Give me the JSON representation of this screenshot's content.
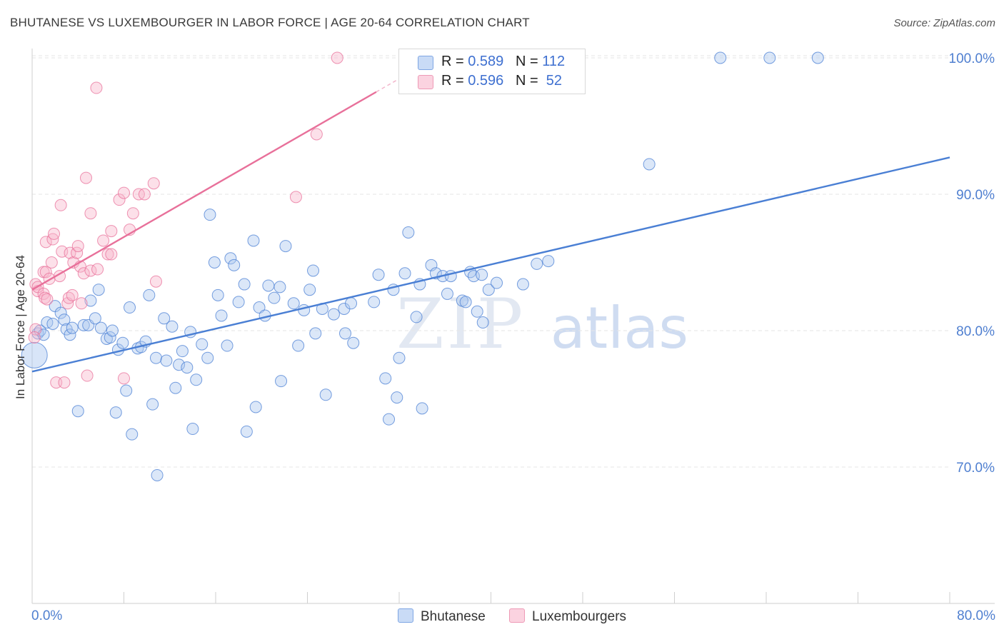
{
  "header": {
    "title": "BHUTANESE VS LUXEMBOURGER IN LABOR FORCE | AGE 20-64 CORRELATION CHART",
    "source": "Source: ZipAtlas.com"
  },
  "watermark": {
    "zip": "ZIP",
    "atlas": "atlas"
  },
  "legend": {
    "rows": [
      {
        "r_label": "R = ",
        "r_value": "0.589",
        "n_label": "N = ",
        "n_value": "112",
        "color": "#a9c6ef"
      },
      {
        "r_label": "R = ",
        "r_value": "0.596",
        "n_label": "N = ",
        "n_value": " 52",
        "color": "#f7b6cb"
      }
    ]
  },
  "bottom_legend": {
    "series_1": "Bhutanese",
    "series_2": "Luxembourgers"
  },
  "chart_data": {
    "type": "scatter",
    "title": "BHUTANESE VS LUXEMBOURGER IN LABOR FORCE | AGE 20-64 CORRELATION CHART",
    "xlabel": "",
    "ylabel": "In Labor Force | Age 20-64",
    "xlim": [
      0,
      80
    ],
    "ylim": [
      61,
      101.5
    ],
    "x_tick_labels": {
      "min": "0.0%",
      "max": "80.0%"
    },
    "y_ticks": [
      {
        "value": 70,
        "label": "70.0%"
      },
      {
        "value": 80,
        "label": "80.0%"
      },
      {
        "value": 90,
        "label": "90.0%"
      },
      {
        "value": 100,
        "label": "100.0%"
      }
    ],
    "grid": "horizontal dashed",
    "legend_position": "top-center",
    "series": [
      {
        "name": "Bhutanese",
        "color": "#4a7fd4",
        "fill": "#a9c6ef",
        "trend": {
          "x0": 0,
          "y0": 77.0,
          "x1": 80,
          "y1": 92.7
        },
        "points": [
          [
            0.2,
            78.2
          ],
          [
            0.5,
            79.8
          ],
          [
            0.7,
            80.0
          ],
          [
            1.0,
            79.7
          ],
          [
            1.3,
            80.6
          ],
          [
            1.8,
            80.5
          ],
          [
            2.0,
            81.8
          ],
          [
            2.5,
            81.3
          ],
          [
            2.8,
            80.8
          ],
          [
            3.0,
            80.1
          ],
          [
            3.3,
            79.7
          ],
          [
            3.5,
            80.2
          ],
          [
            4.0,
            74.1
          ],
          [
            4.5,
            80.4
          ],
          [
            4.9,
            80.4
          ],
          [
            5.1,
            82.2
          ],
          [
            5.5,
            80.9
          ],
          [
            5.8,
            83.0
          ],
          [
            6.0,
            80.2
          ],
          [
            6.5,
            79.4
          ],
          [
            6.8,
            79.5
          ],
          [
            7.0,
            80.0
          ],
          [
            7.3,
            74.0
          ],
          [
            7.5,
            78.6
          ],
          [
            7.9,
            79.1
          ],
          [
            8.2,
            75.6
          ],
          [
            8.5,
            81.7
          ],
          [
            8.7,
            72.4
          ],
          [
            9.2,
            78.7
          ],
          [
            9.5,
            78.8
          ],
          [
            9.9,
            79.2
          ],
          [
            10.2,
            82.6
          ],
          [
            10.5,
            74.6
          ],
          [
            10.9,
            69.4
          ],
          [
            10.8,
            78.0
          ],
          [
            11.5,
            80.9
          ],
          [
            11.7,
            77.8
          ],
          [
            12.2,
            80.3
          ],
          [
            12.5,
            75.8
          ],
          [
            12.8,
            77.5
          ],
          [
            13.1,
            78.5
          ],
          [
            13.5,
            77.3
          ],
          [
            13.8,
            79.9
          ],
          [
            14.0,
            72.8
          ],
          [
            14.3,
            76.4
          ],
          [
            14.8,
            79.0
          ],
          [
            15.3,
            78.0
          ],
          [
            15.5,
            88.5
          ],
          [
            15.9,
            85.0
          ],
          [
            16.2,
            82.6
          ],
          [
            16.5,
            81.1
          ],
          [
            17.0,
            78.9
          ],
          [
            17.3,
            85.3
          ],
          [
            17.6,
            84.8
          ],
          [
            18.0,
            82.1
          ],
          [
            18.5,
            83.4
          ],
          [
            18.7,
            72.6
          ],
          [
            19.3,
            86.6
          ],
          [
            19.5,
            74.4
          ],
          [
            19.8,
            81.7
          ],
          [
            20.3,
            81.1
          ],
          [
            20.6,
            83.3
          ],
          [
            21.1,
            82.4
          ],
          [
            21.6,
            83.2
          ],
          [
            21.7,
            76.3
          ],
          [
            22.1,
            86.2
          ],
          [
            22.8,
            82.0
          ],
          [
            23.2,
            78.9
          ],
          [
            23.7,
            81.5
          ],
          [
            24.2,
            83.0
          ],
          [
            24.5,
            84.4
          ],
          [
            24.7,
            79.8
          ],
          [
            25.3,
            81.6
          ],
          [
            25.6,
            75.3
          ],
          [
            26.3,
            81.2
          ],
          [
            27.2,
            81.6
          ],
          [
            27.3,
            79.8
          ],
          [
            27.8,
            82.0
          ],
          [
            28.0,
            79.1
          ],
          [
            29.8,
            82.1
          ],
          [
            30.2,
            84.1
          ],
          [
            30.8,
            76.5
          ],
          [
            31.1,
            73.5
          ],
          [
            31.5,
            83.0
          ],
          [
            31.8,
            75.1
          ],
          [
            32.0,
            78.0
          ],
          [
            32.5,
            84.2
          ],
          [
            32.8,
            87.2
          ],
          [
            33.5,
            81.0
          ],
          [
            33.8,
            83.4
          ],
          [
            34.0,
            74.3
          ],
          [
            34.8,
            84.8
          ],
          [
            35.2,
            84.2
          ],
          [
            35.8,
            84.0
          ],
          [
            36.2,
            82.7
          ],
          [
            36.5,
            84.0
          ],
          [
            37.5,
            82.2
          ],
          [
            37.8,
            82.1
          ],
          [
            38.2,
            84.3
          ],
          [
            38.5,
            84.0
          ],
          [
            38.8,
            81.4
          ],
          [
            39.2,
            84.1
          ],
          [
            39.3,
            80.6
          ],
          [
            39.8,
            83.0
          ],
          [
            40.5,
            83.5
          ],
          [
            42.8,
            83.4
          ],
          [
            44.0,
            84.9
          ],
          [
            45.0,
            85.1
          ],
          [
            53.8,
            92.2
          ],
          [
            60.0,
            100.0
          ],
          [
            64.3,
            100.0
          ],
          [
            68.5,
            100.0
          ]
        ]
      },
      {
        "name": "Luxembourgers",
        "color": "#e8709a",
        "fill": "#f7b6cb",
        "trend": {
          "x0": 0,
          "y0": 83.0,
          "x1": 30,
          "y1": 97.5,
          "dash_to_x": 36
        },
        "points": [
          [
            0.3,
            80.1
          ],
          [
            0.3,
            83.4
          ],
          [
            0.5,
            82.9
          ],
          [
            0.5,
            83.2
          ],
          [
            1.0,
            84.3
          ],
          [
            1.0,
            82.7
          ],
          [
            1.1,
            82.4
          ],
          [
            1.2,
            84.3
          ],
          [
            1.2,
            86.5
          ],
          [
            1.3,
            82.3
          ],
          [
            1.5,
            83.8
          ],
          [
            1.7,
            85.0
          ],
          [
            1.8,
            86.7
          ],
          [
            1.9,
            87.1
          ],
          [
            2.1,
            76.2
          ],
          [
            2.4,
            84.0
          ],
          [
            2.5,
            89.2
          ],
          [
            2.6,
            85.8
          ],
          [
            2.8,
            76.2
          ],
          [
            3.1,
            82.0
          ],
          [
            3.2,
            82.4
          ],
          [
            3.3,
            85.7
          ],
          [
            3.5,
            82.6
          ],
          [
            3.6,
            85.0
          ],
          [
            3.9,
            85.7
          ],
          [
            4.0,
            86.2
          ],
          [
            4.2,
            84.7
          ],
          [
            4.3,
            82.0
          ],
          [
            4.5,
            84.2
          ],
          [
            4.7,
            91.2
          ],
          [
            4.8,
            76.7
          ],
          [
            5.1,
            84.4
          ],
          [
            5.1,
            88.6
          ],
          [
            5.6,
            97.8
          ],
          [
            5.7,
            84.5
          ],
          [
            6.2,
            86.6
          ],
          [
            6.6,
            85.6
          ],
          [
            6.9,
            85.6
          ],
          [
            6.9,
            87.3
          ],
          [
            7.6,
            89.6
          ],
          [
            8.0,
            90.1
          ],
          [
            8.0,
            76.5
          ],
          [
            8.5,
            87.4
          ],
          [
            8.8,
            88.6
          ],
          [
            9.3,
            90.0
          ],
          [
            9.8,
            90.0
          ],
          [
            10.6,
            90.8
          ],
          [
            10.8,
            83.6
          ],
          [
            23.0,
            89.8
          ],
          [
            24.8,
            94.4
          ],
          [
            26.6,
            100.0
          ],
          [
            0.2,
            79.5
          ]
        ]
      }
    ]
  }
}
